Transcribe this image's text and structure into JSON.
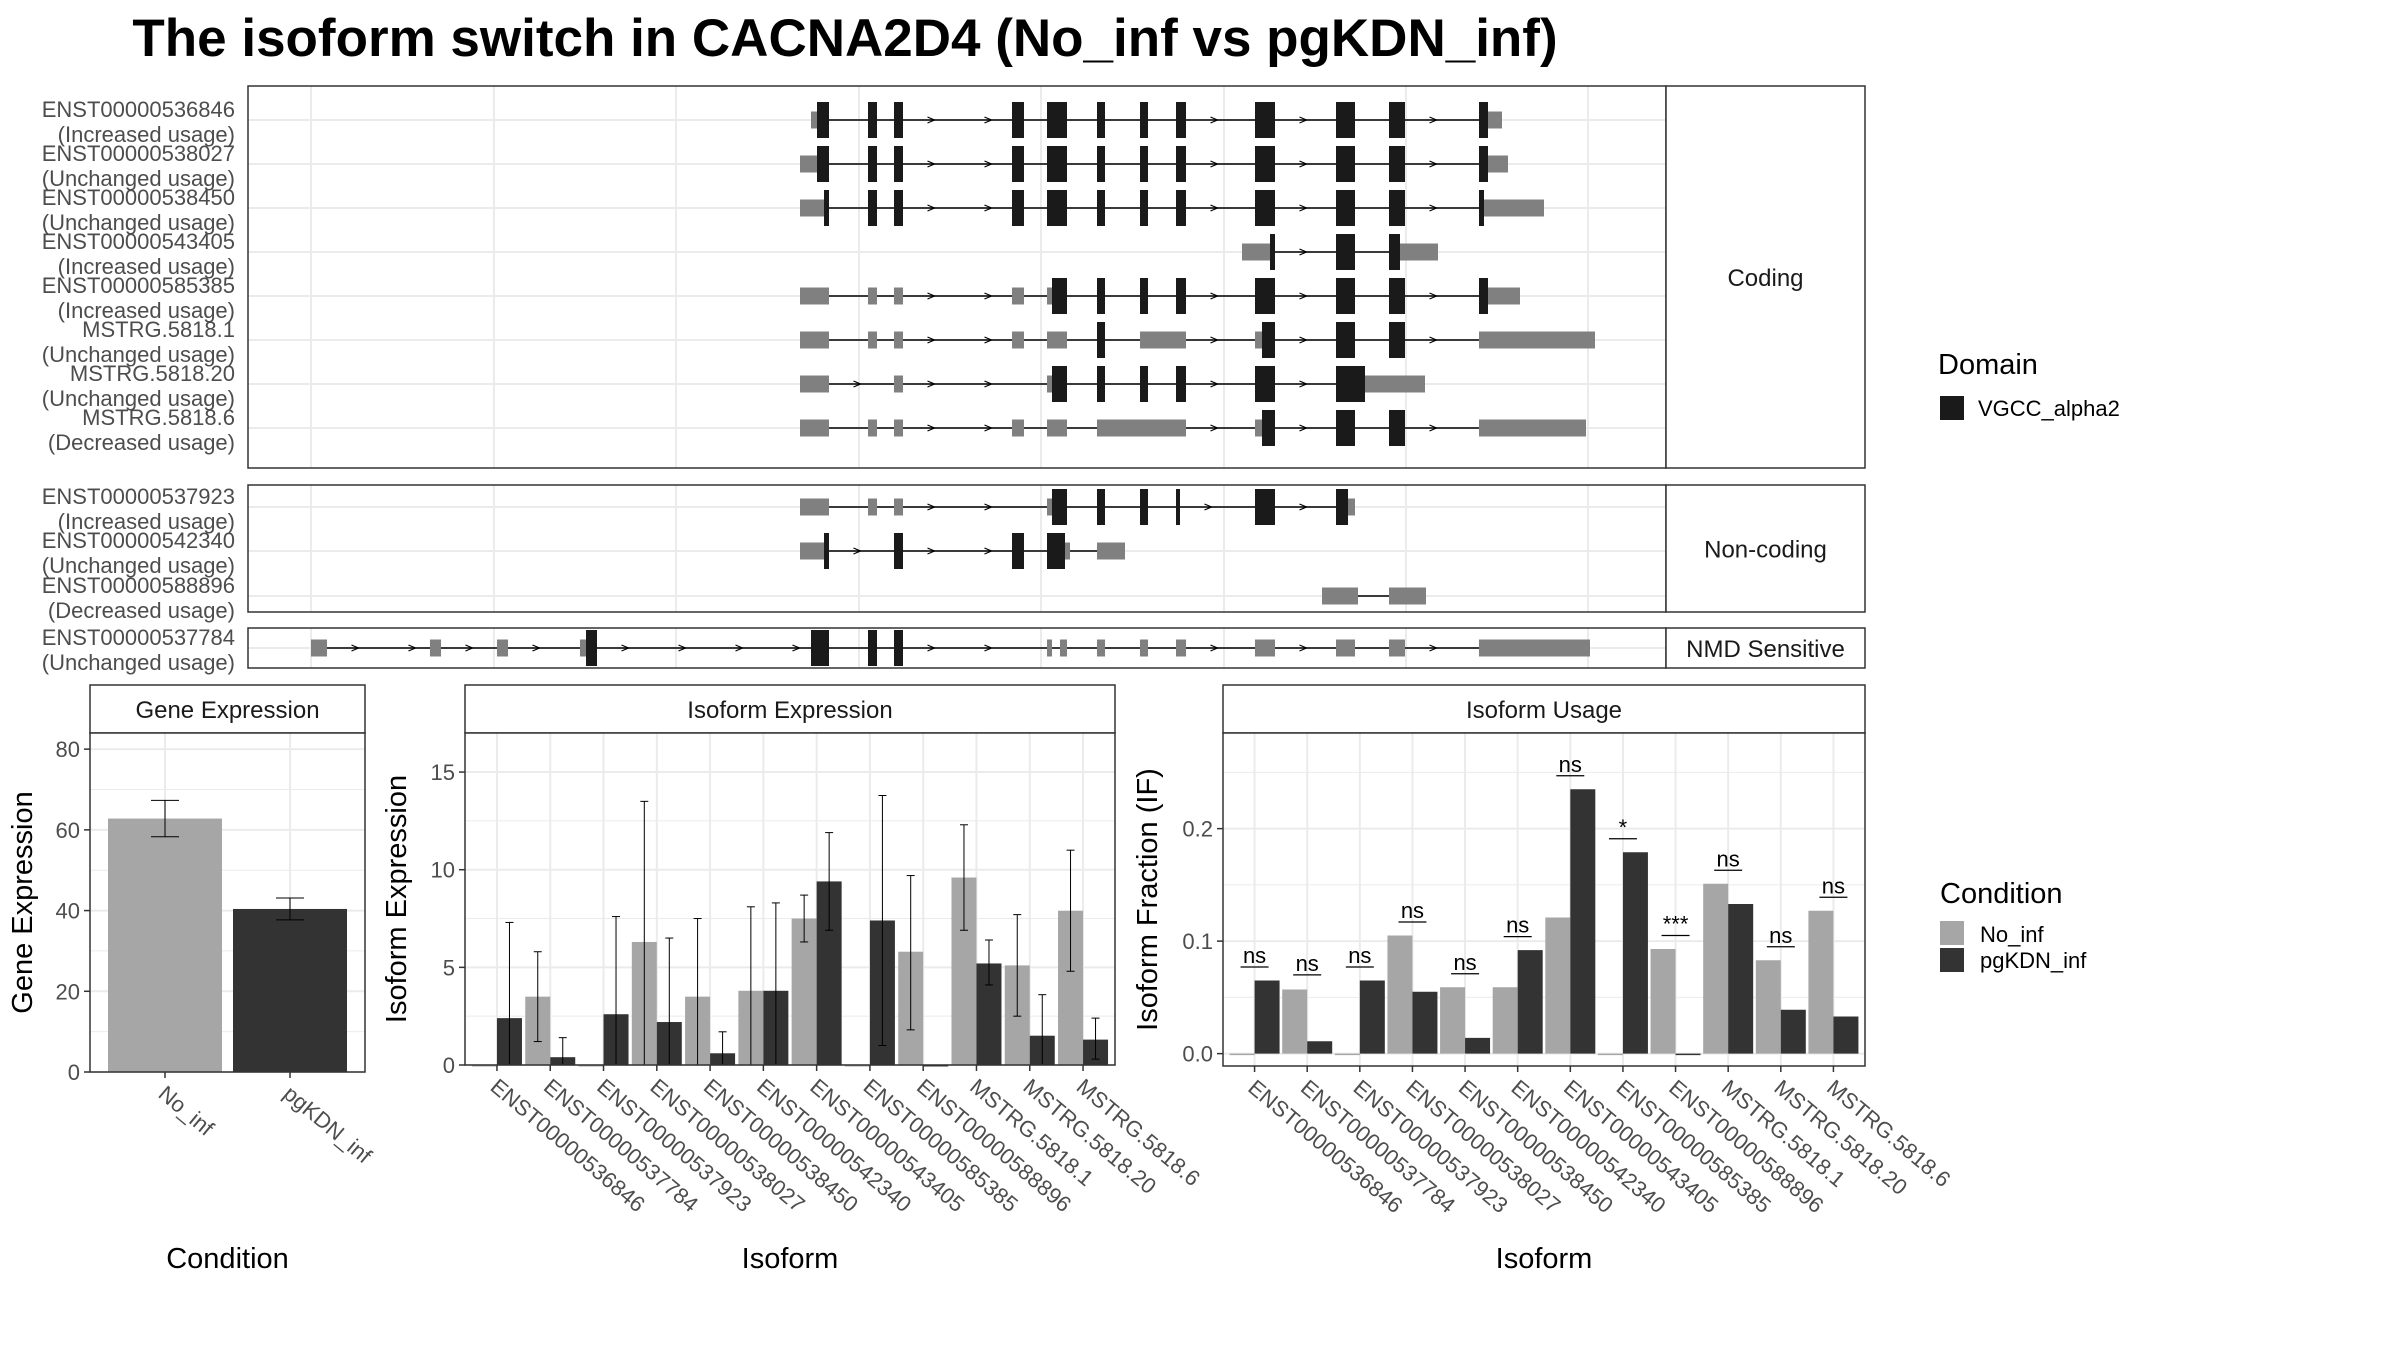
{
  "title": "The isoform switch in CACNA2D4 (No_inf vs pgKDN_inf)",
  "colors": {
    "no_inf": "#a6a6a6",
    "pgkdn_inf": "#333333",
    "domain": "#1a1a1a",
    "utr": "#808080",
    "grid": "#ebebeb",
    "panel_border": "#333333"
  },
  "chart_data": [
    {
      "type": "gene-structure",
      "facets": [
        "Coding",
        "Non-coding",
        "NMD Sensitive"
      ],
      "legend": {
        "title": "Domain",
        "entries": [
          "VGCC_alpha2"
        ]
      },
      "transcripts": [
        {
          "facet": 0,
          "name": "ENST00000536846",
          "status": "(Increased usage)",
          "exons": [
            [
              811,
              817,
              0
            ],
            [
              817,
              829,
              1
            ],
            [
              868,
              877,
              1
            ],
            [
              894,
              903,
              1
            ],
            [
              1012,
              1024,
              1
            ],
            [
              1047,
              1067,
              1
            ],
            [
              1097,
              1105,
              1
            ],
            [
              1140,
              1148,
              1
            ],
            [
              1176,
              1186,
              1
            ],
            [
              1255,
              1275,
              1
            ],
            [
              1336,
              1355,
              1
            ],
            [
              1389,
              1405,
              1
            ],
            [
              1479,
              1488,
              1
            ],
            [
              1488,
              1502,
              0
            ]
          ]
        },
        {
          "facet": 0,
          "name": "ENST00000538027",
          "status": "(Unchanged usage)",
          "exons": [
            [
              800,
              817,
              0
            ],
            [
              817,
              829,
              1
            ],
            [
              868,
              877,
              1
            ],
            [
              894,
              903,
              1
            ],
            [
              1012,
              1024,
              1
            ],
            [
              1047,
              1067,
              1
            ],
            [
              1097,
              1105,
              1
            ],
            [
              1140,
              1148,
              1
            ],
            [
              1176,
              1186,
              1
            ],
            [
              1255,
              1275,
              1
            ],
            [
              1336,
              1355,
              1
            ],
            [
              1389,
              1405,
              1
            ],
            [
              1479,
              1488,
              1
            ],
            [
              1488,
              1508,
              0
            ]
          ]
        },
        {
          "facet": 0,
          "name": "ENST00000538450",
          "status": "(Unchanged usage)",
          "exons": [
            [
              800,
              824,
              0
            ],
            [
              824,
              829,
              1
            ],
            [
              868,
              877,
              1
            ],
            [
              894,
              903,
              1
            ],
            [
              1012,
              1024,
              1
            ],
            [
              1047,
              1067,
              1
            ],
            [
              1097,
              1105,
              1
            ],
            [
              1140,
              1148,
              1
            ],
            [
              1176,
              1186,
              1
            ],
            [
              1255,
              1275,
              1
            ],
            [
              1336,
              1355,
              1
            ],
            [
              1389,
              1405,
              1
            ],
            [
              1479,
              1484,
              1
            ],
            [
              1484,
              1544,
              0
            ]
          ]
        },
        {
          "facet": 0,
          "name": "ENST00000543405",
          "status": "(Increased usage)",
          "exons": [
            [
              1242,
              1270,
              0
            ],
            [
              1270,
              1275,
              1
            ],
            [
              1336,
              1355,
              1
            ],
            [
              1389,
              1400,
              1
            ],
            [
              1400,
              1414,
              0
            ],
            [
              1414,
              1438,
              0
            ]
          ]
        },
        {
          "facet": 0,
          "name": "ENST00000585385",
          "status": "(Increased usage)",
          "exons": [
            [
              800,
              829,
              0
            ],
            [
              868,
              877,
              0
            ],
            [
              894,
              903,
              0
            ],
            [
              1012,
              1024,
              0
            ],
            [
              1047,
              1052,
              0
            ],
            [
              1052,
              1067,
              1
            ],
            [
              1097,
              1105,
              1
            ],
            [
              1140,
              1148,
              1
            ],
            [
              1176,
              1186,
              1
            ],
            [
              1255,
              1275,
              1
            ],
            [
              1336,
              1355,
              1
            ],
            [
              1389,
              1405,
              1
            ],
            [
              1479,
              1488,
              1
            ],
            [
              1488,
              1520,
              0
            ]
          ]
        },
        {
          "facet": 0,
          "name": "MSTRG.5818.1",
          "status": "(Unchanged usage)",
          "exons": [
            [
              800,
              829,
              0
            ],
            [
              868,
              877,
              0
            ],
            [
              894,
              903,
              0
            ],
            [
              1012,
              1024,
              0
            ],
            [
              1047,
              1067,
              0
            ],
            [
              1097,
              1105,
              1
            ],
            [
              1140,
              1148,
              0
            ],
            [
              1140,
              1167,
              0
            ],
            [
              1167,
              1186,
              0
            ],
            [
              1255,
              1262,
              0
            ],
            [
              1262,
              1275,
              1
            ],
            [
              1336,
              1355,
              1
            ],
            [
              1389,
              1405,
              1
            ],
            [
              1479,
              1488,
              0
            ],
            [
              1488,
              1595,
              0
            ]
          ]
        },
        {
          "facet": 0,
          "name": "MSTRG.5818.20",
          "status": "(Unchanged usage)",
          "exons": [
            [
              800,
              829,
              0
            ],
            [
              894,
              903,
              0
            ],
            [
              1047,
              1052,
              0
            ],
            [
              1052,
              1067,
              1
            ],
            [
              1097,
              1105,
              1
            ],
            [
              1140,
              1148,
              1
            ],
            [
              1176,
              1186,
              1
            ],
            [
              1255,
              1275,
              1
            ],
            [
              1336,
              1365,
              1
            ],
            [
              1365,
              1425,
              0
            ]
          ]
        },
        {
          "facet": 0,
          "name": "MSTRG.5818.6",
          "status": "(Decreased usage)",
          "exons": [
            [
              800,
              829,
              0
            ],
            [
              868,
              877,
              0
            ],
            [
              894,
              903,
              0
            ],
            [
              1012,
              1024,
              0
            ],
            [
              1047,
              1067,
              0
            ],
            [
              1097,
              1167,
              0
            ],
            [
              1167,
              1186,
              0
            ],
            [
              1255,
              1262,
              0
            ],
            [
              1262,
              1275,
              1
            ],
            [
              1336,
              1355,
              1
            ],
            [
              1389,
              1405,
              1
            ],
            [
              1479,
              1488,
              0
            ],
            [
              1488,
              1586,
              0
            ]
          ]
        },
        {
          "facet": 1,
          "name": "ENST00000537923",
          "status": "(Increased usage)",
          "exons": [
            [
              800,
              829,
              0
            ],
            [
              868,
              877,
              0
            ],
            [
              894,
              903,
              0
            ],
            [
              1047,
              1052,
              0
            ],
            [
              1052,
              1067,
              1
            ],
            [
              1097,
              1105,
              1
            ],
            [
              1140,
              1148,
              1
            ],
            [
              1176,
              1180,
              1
            ],
            [
              1255,
              1275,
              1
            ],
            [
              1336,
              1348,
              1
            ],
            [
              1348,
              1355,
              0
            ]
          ]
        },
        {
          "facet": 1,
          "name": "ENST00000542340",
          "status": "(Unchanged usage)",
          "exons": [
            [
              800,
              824,
              0
            ],
            [
              824,
              829,
              1
            ],
            [
              894,
              903,
              1
            ],
            [
              1012,
              1024,
              1
            ],
            [
              1047,
              1065,
              1
            ],
            [
              1065,
              1070,
              0
            ],
            [
              1097,
              1105,
              0
            ],
            [
              1105,
              1125,
              0
            ]
          ]
        },
        {
          "facet": 1,
          "name": "ENST00000588896",
          "status": "(Decreased usage)",
          "exons": [
            [
              1322,
              1358,
              0
            ],
            [
              1389,
              1426,
              0
            ]
          ]
        },
        {
          "facet": 2,
          "name": "ENST00000537784",
          "status": "(Unchanged usage)",
          "exons": [
            [
              311,
              327,
              0
            ],
            [
              430,
              441,
              0
            ],
            [
              497,
              508,
              0
            ],
            [
              580,
              586,
              0
            ],
            [
              586,
              597,
              1
            ],
            [
              811,
              829,
              1
            ],
            [
              868,
              877,
              1
            ],
            [
              894,
              903,
              1
            ],
            [
              1047,
              1052,
              0
            ],
            [
              1060,
              1067,
              0
            ],
            [
              1097,
              1105,
              0
            ],
            [
              1140,
              1148,
              0
            ],
            [
              1176,
              1186,
              0
            ],
            [
              1255,
              1275,
              0
            ],
            [
              1336,
              1355,
              0
            ],
            [
              1389,
              1405,
              0
            ],
            [
              1479,
              1590,
              0
            ]
          ]
        }
      ]
    },
    {
      "type": "bar",
      "facet_title": "Gene Expression",
      "xlabel": "Condition",
      "ylabel": "Gene Expression",
      "ylim": [
        0,
        84
      ],
      "yticks": [
        0,
        20,
        40,
        60,
        80
      ],
      "categories": [
        "No_inf",
        "pgKDN_inf"
      ],
      "values": [
        62.8,
        40.4
      ],
      "errors": [
        [
          58.3,
          67.3
        ],
        [
          37.7,
          43.1
        ]
      ]
    },
    {
      "type": "bar",
      "facet_title": "Isoform Expression",
      "xlabel": "Isoform",
      "ylabel": "Isoform Expression",
      "ylim": [
        0,
        17
      ],
      "yticks": [
        0,
        5,
        10,
        15
      ],
      "categories": [
        "ENST00000536846",
        "ENST00000537784",
        "ENST00000537923",
        "ENST00000538027",
        "ENST00000538450",
        "ENST00000542340",
        "ENST00000543405",
        "ENST00000585385",
        "ENST00000588896",
        "MSTRG.5818.1",
        "MSTRG.5818.20",
        "MSTRG.5818.6"
      ],
      "series": [
        {
          "name": "No_inf",
          "values": [
            0,
            3.5,
            0,
            6.3,
            3.5,
            3.8,
            7.5,
            0,
            5.8,
            9.6,
            5.1,
            7.9
          ],
          "errors": [
            [
              0,
              0
            ],
            [
              1.2,
              5.8
            ],
            [
              0,
              0
            ],
            [
              0.0,
              13.5
            ],
            [
              0.0,
              7.5
            ],
            [
              0.0,
              8.1
            ],
            [
              6.3,
              8.7
            ],
            [
              0,
              0
            ],
            [
              1.8,
              9.7
            ],
            [
              6.9,
              12.3
            ],
            [
              2.5,
              7.7
            ],
            [
              4.8,
              11.0
            ]
          ]
        },
        {
          "name": "pgKDN_inf",
          "values": [
            2.4,
            0.4,
            2.6,
            2.2,
            0.6,
            3.8,
            9.4,
            7.4,
            0,
            5.2,
            1.5,
            1.3
          ],
          "errors": [
            [
              0.0,
              7.3
            ],
            [
              0.0,
              1.4
            ],
            [
              0.0,
              7.6
            ],
            [
              0.0,
              6.5
            ],
            [
              0.0,
              1.7
            ],
            [
              0.0,
              8.3
            ],
            [
              6.9,
              11.9
            ],
            [
              1.0,
              13.8
            ],
            [
              0,
              0
            ],
            [
              4.1,
              6.4
            ],
            [
              0.0,
              3.6
            ],
            [
              0.3,
              2.4
            ]
          ]
        }
      ]
    },
    {
      "type": "bar",
      "facet_title": "Isoform Usage",
      "xlabel": "Isoform",
      "ylabel": "Isoform Fraction (IF)",
      "ylim": [
        -0.011,
        0.285
      ],
      "yticks": [
        0.0,
        0.1,
        0.2
      ],
      "ytick_labels": [
        "0.0",
        "0.1",
        "0.2"
      ],
      "categories": [
        "ENST00000536846",
        "ENST00000537784",
        "ENST00000537923",
        "ENST00000538027",
        "ENST00000538450",
        "ENST00000542340",
        "ENST00000543405",
        "ENST00000585385",
        "ENST00000588896",
        "MSTRG.5818.1",
        "MSTRG.5818.20",
        "MSTRG.5818.6"
      ],
      "series": [
        {
          "name": "No_inf",
          "values": [
            0,
            0.057,
            0,
            0.105,
            0.059,
            0.059,
            0.121,
            0,
            0.093,
            0.151,
            0.083,
            0.127
          ]
        },
        {
          "name": "pgKDN_inf",
          "values": [
            0.065,
            0.011,
            0.065,
            0.055,
            0.014,
            0.092,
            0.235,
            0.179,
            0,
            0.133,
            0.039,
            0.033
          ]
        }
      ],
      "significance": [
        "ns",
        "ns",
        "ns",
        "ns",
        "ns",
        "ns",
        "ns",
        "*",
        "***",
        "ns",
        "ns",
        "ns"
      ],
      "significance_y": [
        0.077,
        0.07,
        0.077,
        0.117,
        0.071,
        0.104,
        0.247,
        0.191,
        0.105,
        0.163,
        0.095,
        0.139
      ]
    }
  ],
  "legend_condition": {
    "title": "Condition",
    "entries": [
      "No_inf",
      "pgKDN_inf"
    ]
  }
}
